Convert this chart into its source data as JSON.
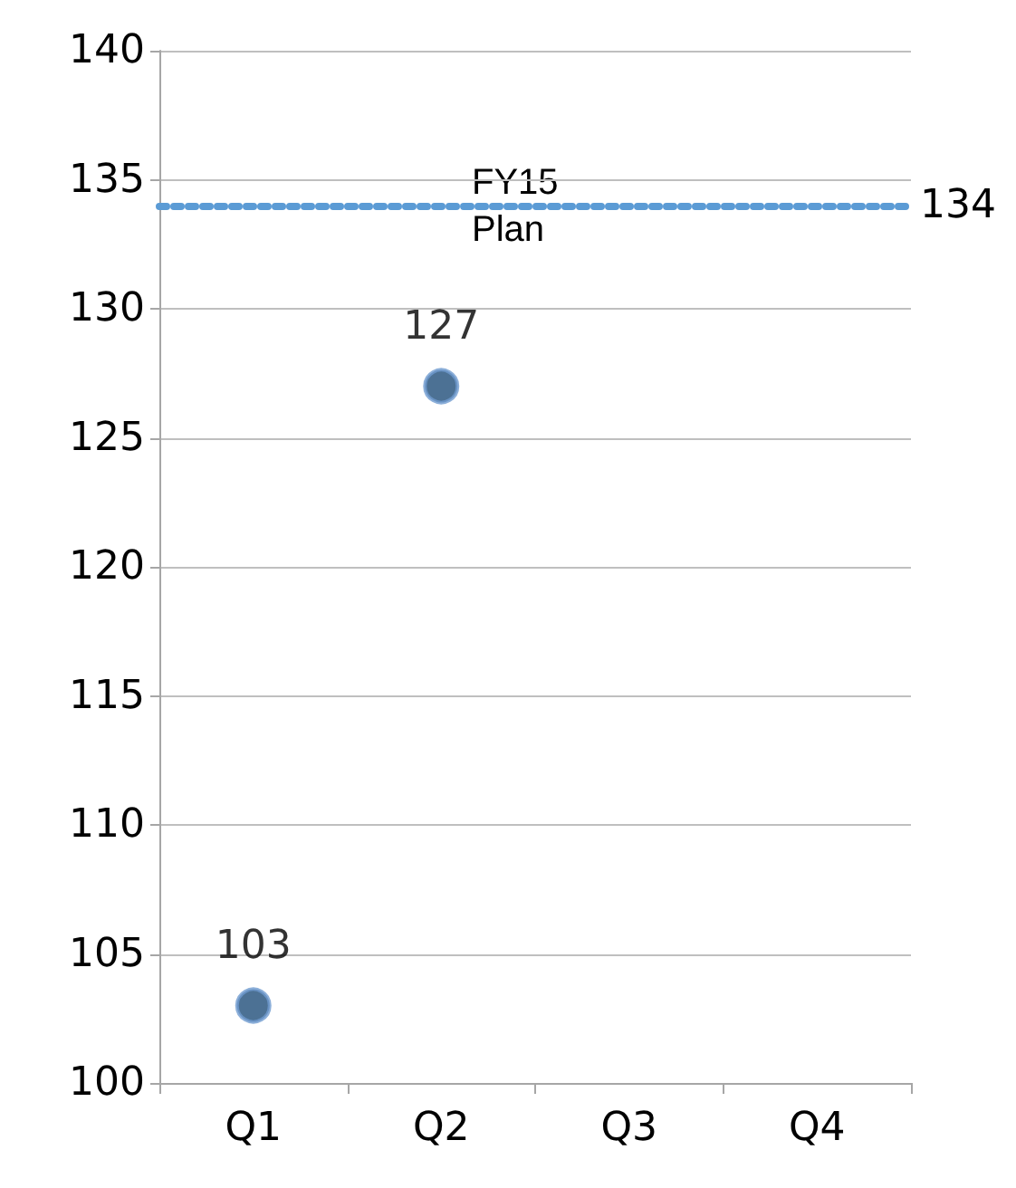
{
  "chart_data": {
    "type": "scatter",
    "categories": [
      "Q1",
      "Q2",
      "Q3",
      "Q4"
    ],
    "series": [
      {
        "color": "#1f4e79",
        "values": [
          103,
          127,
          null,
          null
        ]
      }
    ],
    "ylim": [
      100,
      140
    ],
    "yticks": [
      100,
      105,
      110,
      115,
      120,
      125,
      130,
      135,
      140
    ],
    "grid": "y",
    "marker": "circle",
    "data_labels": true,
    "ref_lines": [
      {
        "axis": "y",
        "value": 134,
        "label": "134",
        "color": "#5b9bd5",
        "line_style": "dotted"
      }
    ],
    "annotations": [
      "FY15 Plan"
    ]
  }
}
